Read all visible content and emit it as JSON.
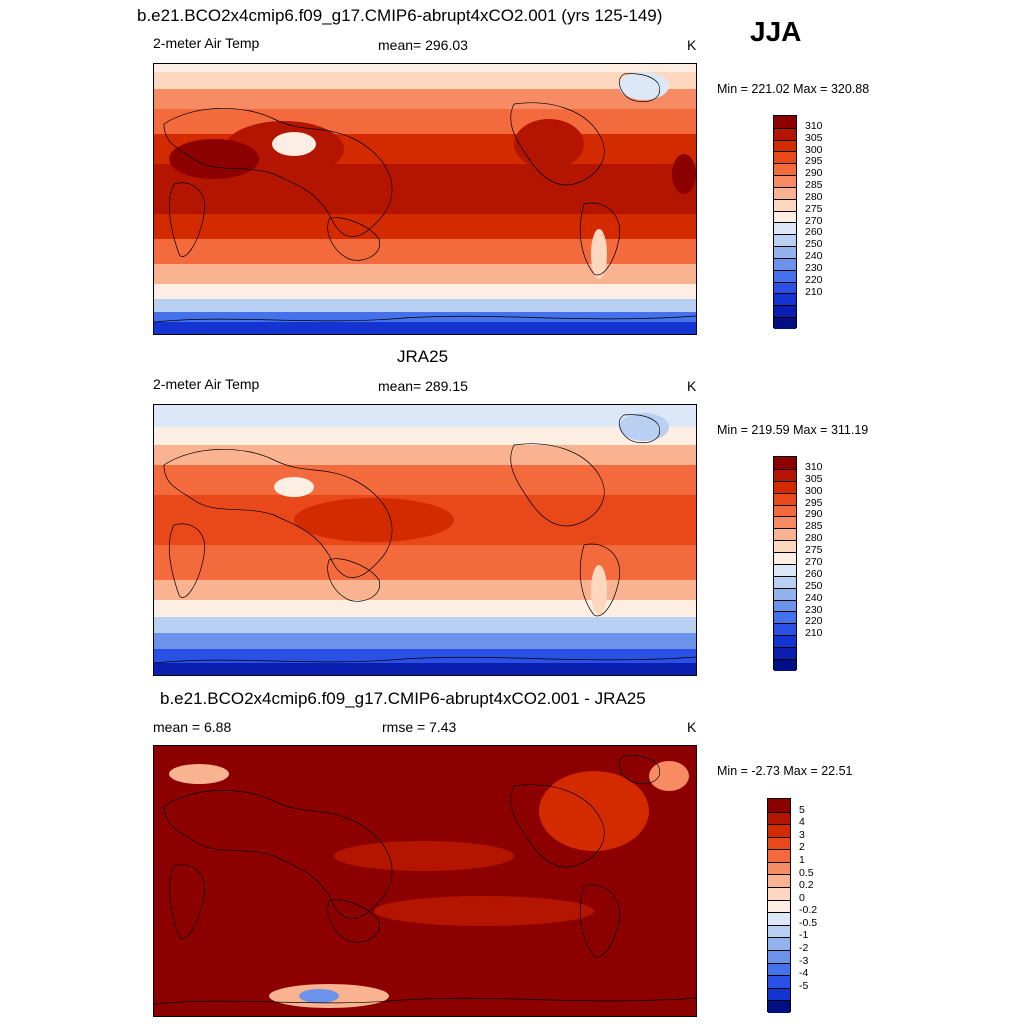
{
  "header": {
    "title": "b.e21.BCO2x4cmip6.f09_g17.CMIP6-abrupt4xCO2.001 (yrs 125-149)",
    "season": "JJA"
  },
  "panels": [
    {
      "id": "model",
      "title": "",
      "left_label": "2-meter Air Temp",
      "center_label": "mean= 296.03",
      "right_label": "K",
      "minmax": "Min = 221.02 Max = 320.88",
      "field": "model"
    },
    {
      "id": "obs",
      "title": "JRA25",
      "left_label": "2-meter Air Temp",
      "center_label": "mean= 289.15",
      "right_label": "K",
      "minmax": "Min = 219.59 Max = 311.19",
      "field": "obs"
    },
    {
      "id": "diff",
      "title": "b.e21.BCO2x4cmip6.f09_g17.CMIP6-abrupt4xCO2.001 - JRA25",
      "left_label": "mean =   6.88",
      "center_label": "rmse =   7.43",
      "right_label": "K",
      "minmax": "Min =  -2.73 Max =  22.51",
      "field": "diff"
    }
  ],
  "colorbars": {
    "temp": {
      "colors": [
        "#8c0000",
        "#b31500",
        "#d42a00",
        "#e8481a",
        "#f36a3c",
        "#f78c64",
        "#fab391",
        "#fdd7be",
        "#fdeee3",
        "#dce8f7",
        "#b9d0f2",
        "#92b3ee",
        "#6c93ec",
        "#4571ea",
        "#2a50e6",
        "#1434d2",
        "#0a1fb0",
        "#020f82"
      ],
      "labels": [
        "310",
        "305",
        "300",
        "295",
        "290",
        "285",
        "280",
        "275",
        "270",
        "260",
        "250",
        "240",
        "230",
        "220",
        "210"
      ]
    },
    "diff": {
      "colors": [
        "#8c0000",
        "#b31500",
        "#d42a00",
        "#e8481a",
        "#f36a3c",
        "#f78c64",
        "#fab391",
        "#fdd7be",
        "#fdeee3",
        "#dce8f7",
        "#b9d0f2",
        "#92b3ee",
        "#6c93ec",
        "#4571ea",
        "#2a50e6",
        "#1434d2",
        "#020f82"
      ],
      "labels": [
        "5",
        "4",
        "3",
        "2",
        "1",
        "0.5",
        "0.2",
        "0",
        "-0.2",
        "-0.5",
        "-1",
        "-2",
        "-3",
        "-4",
        "-5"
      ]
    }
  }
}
